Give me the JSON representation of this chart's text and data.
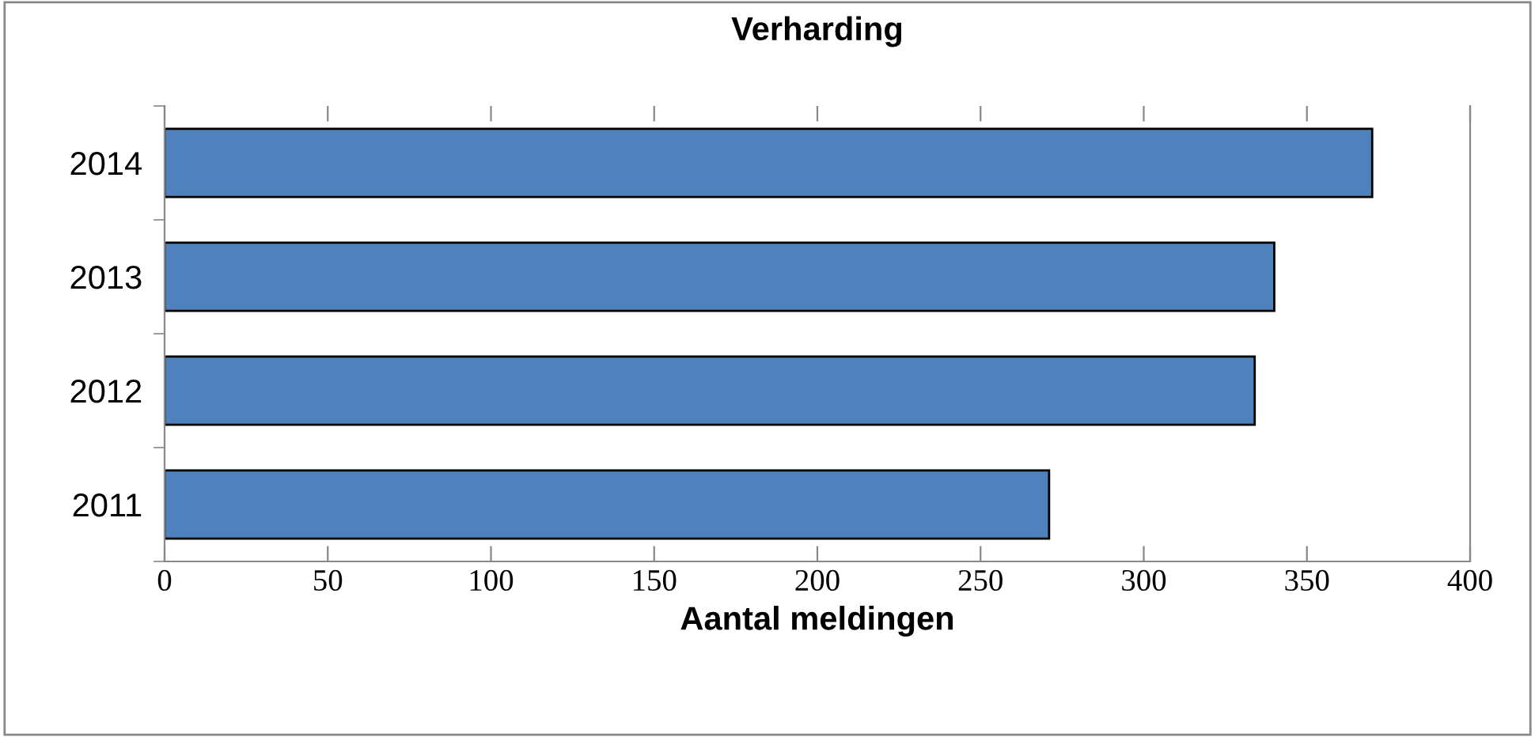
{
  "chart_data": {
    "type": "bar",
    "orientation": "horizontal",
    "title": "Verharding",
    "xlabel": "Aantal meldingen",
    "categories": [
      "2014",
      "2013",
      "2012",
      "2011"
    ],
    "values": [
      370,
      340,
      334,
      271
    ],
    "color": "#4f81bd",
    "xlim": [
      0,
      400
    ],
    "xticks": [
      0,
      50,
      100,
      150,
      200,
      250,
      300,
      350,
      400
    ],
    "grid": false,
    "legend": false
  }
}
